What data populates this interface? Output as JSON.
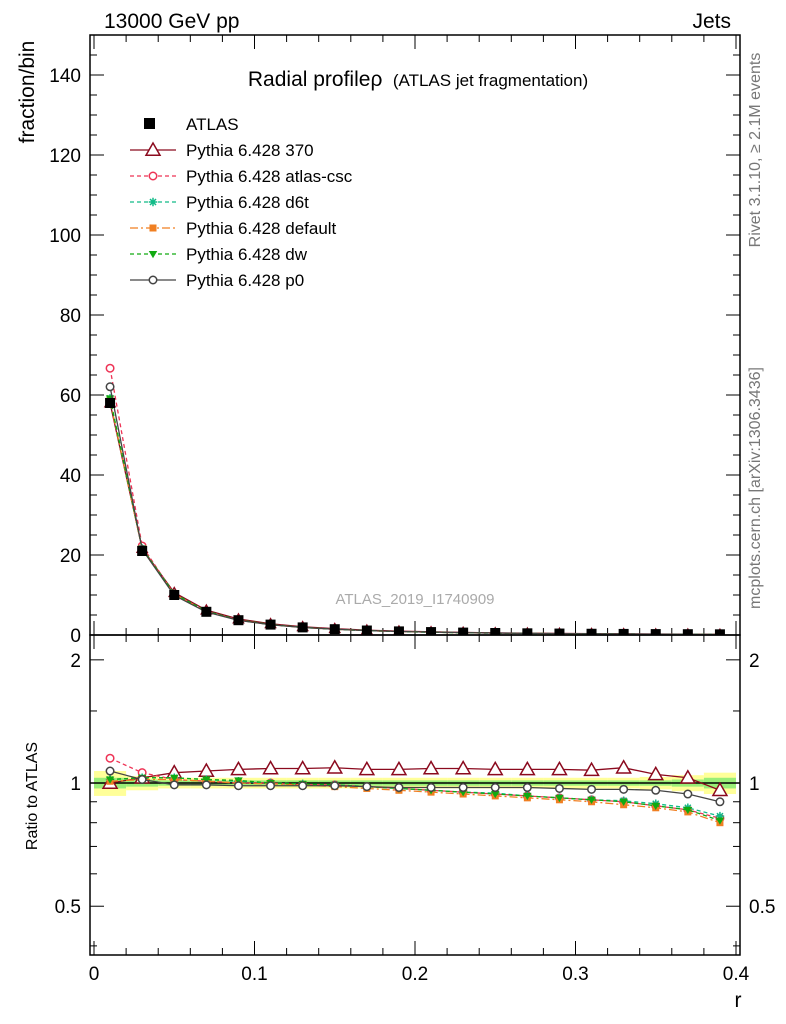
{
  "header": {
    "left": "13000 GeV pp",
    "right": "Jets"
  },
  "side_labels": {
    "top": "Rivet 3.1.10, ≥ 2.1M events",
    "bottom": "mcplots.cern.ch [arXiv:1306.3436]"
  },
  "chart_data": {
    "type": "line",
    "title": "Radial profileρ",
    "subtitle": "(ATLAS jet fragmentation)",
    "watermark": "ATLAS_2019_I1740909",
    "xlabel": "r",
    "ylabel_main": "fraction/bin",
    "ylabel_ratio": "Ratio to ATLAS",
    "x_ticks": [
      "0",
      "0.1",
      "0.2",
      "0.3",
      "0.4"
    ],
    "main_y_ticks": [
      "0",
      "20",
      "40",
      "60",
      "80",
      "100",
      "120",
      "140"
    ],
    "ratio_y_ticks": [
      "0.5",
      "1",
      "2"
    ],
    "xlim": [
      -0.0025,
      0.4025
    ],
    "main_ylim": [
      0,
      150
    ],
    "ratio_ylim": [
      0.38,
      2.3
    ],
    "ratio_scale": "log",
    "legend_position": "top-left",
    "x": [
      0.01,
      0.03,
      0.05,
      0.07,
      0.09,
      0.11,
      0.13,
      0.15,
      0.17,
      0.19,
      0.21,
      0.23,
      0.25,
      0.27,
      0.29,
      0.31,
      0.33,
      0.35,
      0.37,
      0.39
    ],
    "reference": {
      "name": "ATLAS",
      "values": [
        58.0,
        21.0,
        10.0,
        5.8,
        3.7,
        2.6,
        1.9,
        1.45,
        1.12,
        0.9,
        0.73,
        0.6,
        0.5,
        0.42,
        0.36,
        0.31,
        0.27,
        0.23,
        0.2,
        0.17
      ],
      "band_inner": [
        0.03,
        0.02,
        0.015,
        0.015,
        0.015,
        0.015,
        0.015,
        0.015,
        0.015,
        0.015,
        0.015,
        0.015,
        0.015,
        0.015,
        0.015,
        0.015,
        0.015,
        0.015,
        0.02,
        0.03
      ],
      "band_outer": [
        0.07,
        0.04,
        0.03,
        0.03,
        0.03,
        0.03,
        0.03,
        0.03,
        0.03,
        0.03,
        0.03,
        0.03,
        0.03,
        0.03,
        0.03,
        0.03,
        0.03,
        0.035,
        0.045,
        0.06
      ]
    },
    "series": [
      {
        "name": "Pythia 6.428 370",
        "color": "#8b0a1e",
        "dash": "",
        "marker": "triangle-open",
        "ratio": [
          1.0,
          1.03,
          1.06,
          1.07,
          1.08,
          1.085,
          1.085,
          1.09,
          1.08,
          1.08,
          1.085,
          1.085,
          1.08,
          1.08,
          1.08,
          1.075,
          1.09,
          1.05,
          1.03,
          0.96
        ]
      },
      {
        "name": "Pythia 6.428 atlas-csc",
        "color": "#ee3355",
        "dash": "4,3",
        "marker": "circle-open",
        "ratio": [
          1.15,
          1.06,
          1.02,
          1.01,
          1.0,
          1.0,
          0.99,
          0.99,
          0.98,
          0.97,
          0.96,
          0.95,
          0.94,
          0.93,
          0.92,
          0.91,
          0.9,
          0.88,
          0.86,
          0.82
        ]
      },
      {
        "name": "Pythia 6.428 d6t",
        "color": "#11bb88",
        "dash": "4,3",
        "marker": "star",
        "ratio": [
          1.02,
          1.03,
          1.03,
          1.02,
          1.01,
          1.0,
          0.995,
          0.99,
          0.98,
          0.97,
          0.96,
          0.95,
          0.945,
          0.93,
          0.92,
          0.91,
          0.905,
          0.89,
          0.87,
          0.83
        ]
      },
      {
        "name": "Pythia 6.428 default",
        "color": "#f07f22",
        "dash": "8,3,2,3",
        "marker": "square",
        "ratio": [
          1.01,
          1.02,
          1.02,
          1.01,
          1.0,
          0.995,
          0.99,
          0.98,
          0.97,
          0.96,
          0.95,
          0.94,
          0.93,
          0.92,
          0.91,
          0.9,
          0.885,
          0.87,
          0.85,
          0.8
        ]
      },
      {
        "name": "Pythia 6.428 dw",
        "color": "#11aa11",
        "dash": "4,3",
        "marker": "triangle-down",
        "ratio": [
          1.02,
          1.03,
          1.03,
          1.02,
          1.015,
          1.0,
          0.995,
          0.99,
          0.98,
          0.97,
          0.96,
          0.95,
          0.94,
          0.93,
          0.92,
          0.91,
          0.9,
          0.88,
          0.86,
          0.81
        ]
      },
      {
        "name": "Pythia 6.428 p0",
        "color": "#444444",
        "dash": "",
        "marker": "circle-open",
        "ratio": [
          1.07,
          1.02,
          0.99,
          0.99,
          0.985,
          0.985,
          0.985,
          0.985,
          0.98,
          0.975,
          0.975,
          0.975,
          0.975,
          0.975,
          0.97,
          0.965,
          0.965,
          0.96,
          0.94,
          0.9
        ]
      }
    ]
  }
}
